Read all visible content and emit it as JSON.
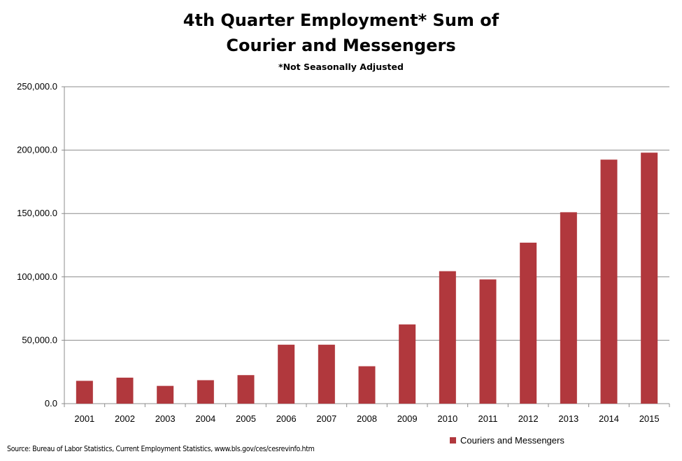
{
  "colors": {
    "bar": "#b1383d",
    "gridline": "#8c8c8c",
    "axis": "#8c8c8c",
    "text": "#000000"
  },
  "chart_data": {
    "type": "bar",
    "title": "4th Quarter Employment* Sum of Courier and Messengers",
    "title_lines": [
      "4th Quarter Employment* Sum of",
      "Courier and Messengers"
    ],
    "subtitle": "*Not Seasonally  Adjusted",
    "xlabel": "",
    "ylabel": "",
    "categories": [
      "2001",
      "2002",
      "2003",
      "2004",
      "2005",
      "2006",
      "2007",
      "2008",
      "2009",
      "2010",
      "2011",
      "2012",
      "2013",
      "2014",
      "2015"
    ],
    "series": [
      {
        "name": "Couriers and Messengers",
        "values": [
          18000,
          20500,
          14000,
          18500,
          22500,
          46500,
          46500,
          29500,
          62500,
          104500,
          98000,
          127000,
          151000,
          192500,
          198000
        ]
      }
    ],
    "ylim": [
      0,
      250000
    ],
    "yticks": [
      0,
      50000,
      100000,
      150000,
      200000,
      250000
    ],
    "ytick_labels": [
      "0.0",
      "50,000.0",
      "100,000.0",
      "150,000.0",
      "200,000.0",
      "250,000.0"
    ],
    "grid": true,
    "legend_position": "bottom-right",
    "source": "Source: Bureau of Labor Statistics, Current Employment Statistics, www.bls.gov/ces/cesrevinfo.htm"
  }
}
